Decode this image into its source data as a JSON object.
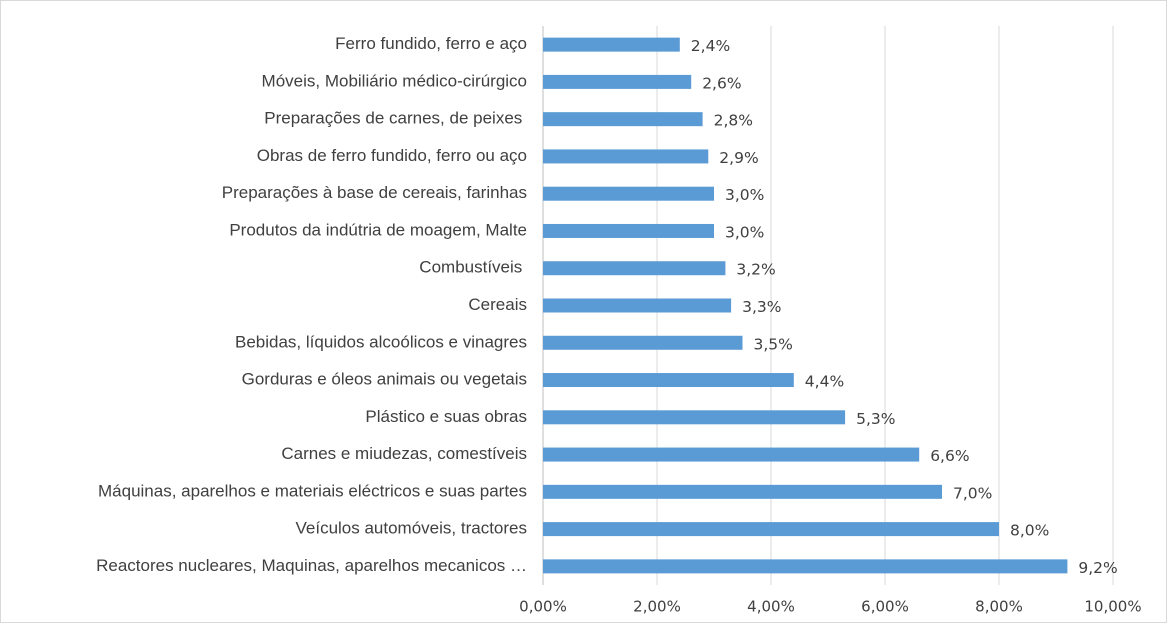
{
  "chart_data": {
    "type": "bar",
    "orientation": "horizontal",
    "categories": [
      "Ferro fundido, ferro e aço",
      "Móveis, Mobiliário médico-cirúrgico",
      "Preparações de carnes, de peixes ",
      "Obras de ferro fundido, ferro ou aço",
      "Preparações à base de cereais, farinhas",
      "Produtos da indútria de moagem, Malte",
      "Combustíveis ",
      "Cereais",
      "Bebidas, líquidos alcoólicos e vinagres",
      "Gorduras e óleos animais ou vegetais",
      "Plástico e suas obras",
      "Carnes e miudezas, comestíveis",
      "Máquinas, aparelhos e materiais eléctricos e suas partes",
      "Veículos automóveis, tractores",
      "Reactores nucleares, Maquinas, aparelhos mecanicos …"
    ],
    "values": [
      2.4,
      2.6,
      2.8,
      2.9,
      3.0,
      3.0,
      3.2,
      3.3,
      3.5,
      4.4,
      5.3,
      6.6,
      7.0,
      8.0,
      9.2
    ],
    "value_labels": [
      "2,4%",
      "2,6%",
      "2,8%",
      "2,9%",
      "3,0%",
      "3,0%",
      "3,2%",
      "3,3%",
      "3,5%",
      "4,4%",
      "5,3%",
      "6,6%",
      "7,0%",
      "8,0%",
      "9,2%"
    ],
    "color": "#5b9bd5",
    "xlim": [
      0,
      10
    ],
    "xticks": [
      {
        "value": 0,
        "label": "0,00%"
      },
      {
        "value": 2,
        "label": "2,00%"
      },
      {
        "value": 4,
        "label": "4,00%"
      },
      {
        "value": 6,
        "label": "6,00%"
      },
      {
        "value": 8,
        "label": "8,00%"
      },
      {
        "value": 10,
        "label": "10,00%"
      }
    ],
    "grid": true
  }
}
